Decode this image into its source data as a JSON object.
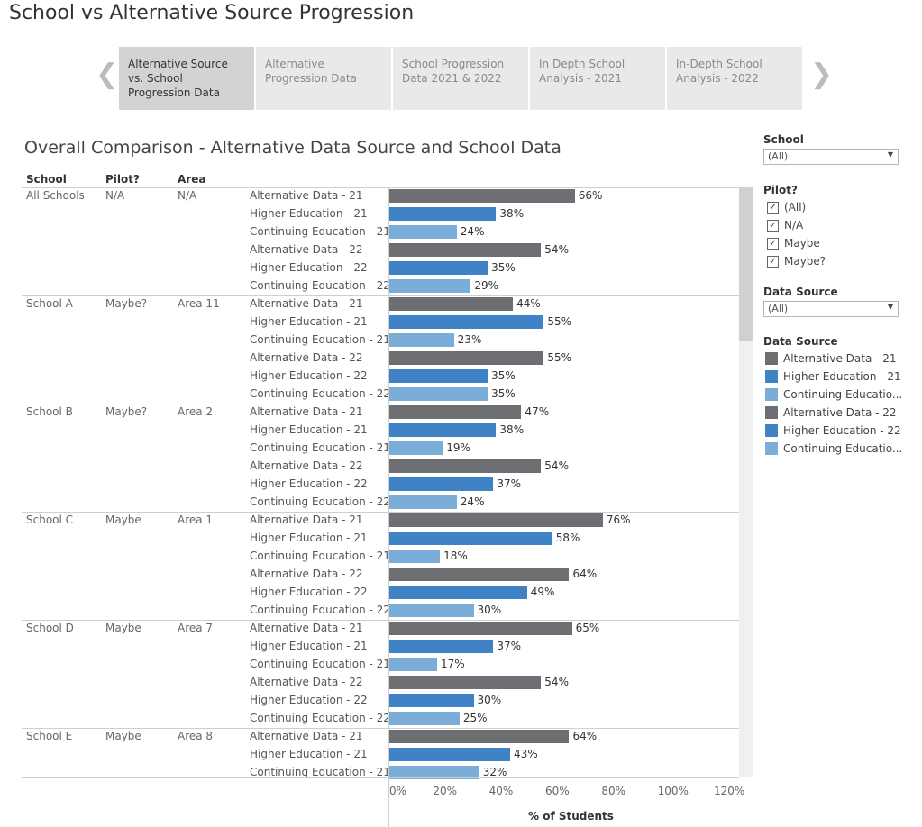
{
  "page": {
    "title": "School vs Alternative Source Progression",
    "subtitle": "Overall Comparison - Alternative Data Source and School Data"
  },
  "tabs": [
    {
      "label": "Alternative Source vs. School Progression Data",
      "active": true
    },
    {
      "label": "Alternative Progression Data",
      "active": false
    },
    {
      "label": "School Progression Data 2021 & 2022",
      "active": false
    },
    {
      "label": "In Depth School Analysis - 2021",
      "active": false
    },
    {
      "label": "In-Depth School Analysis - 2022",
      "active": false
    }
  ],
  "icons": {
    "prev": "chevron-left-icon",
    "next": "chevron-right-icon",
    "checkbox": "checkmark-icon",
    "dropdown": "caret-down-icon"
  },
  "table_headers": {
    "school": "School",
    "pilot": "Pilot?",
    "area": "Area"
  },
  "colors": {
    "alternative": "#6e6f72",
    "higher": "#3f82c5",
    "continuing": "#7aaed9"
  },
  "chart_data": {
    "type": "bar",
    "orientation": "horizontal",
    "xlabel": "% of Students",
    "xlim": [
      0,
      120
    ],
    "x_ticks": [
      "0%",
      "20%",
      "40%",
      "60%",
      "80%",
      "100%",
      "120%"
    ],
    "categories": [
      "Alternative Data - 21",
      "Higher Education - 21",
      "Continuing Education - 21",
      "Alternative Data - 22",
      "Higher Education - 22",
      "Continuing Education - 22"
    ],
    "groups": [
      {
        "school": "All Schools",
        "pilot": "N/A",
        "area": "N/A",
        "values": [
          66,
          38,
          24,
          54,
          35,
          29
        ]
      },
      {
        "school": "School A",
        "pilot": "Maybe?",
        "area": "Area 11",
        "values": [
          44,
          55,
          23,
          55,
          35,
          35
        ]
      },
      {
        "school": "School B",
        "pilot": "Maybe?",
        "area": "Area 2",
        "values": [
          47,
          38,
          19,
          54,
          37,
          24
        ]
      },
      {
        "school": "School C",
        "pilot": "Maybe",
        "area": "Area 1",
        "values": [
          76,
          58,
          18,
          64,
          49,
          30
        ]
      },
      {
        "school": "School D",
        "pilot": "Maybe",
        "area": "Area 7",
        "values": [
          65,
          37,
          17,
          54,
          30,
          25
        ]
      },
      {
        "school": "School E",
        "pilot": "Maybe",
        "area": "Area 8",
        "values": [
          64,
          43,
          32
        ]
      }
    ]
  },
  "filters": {
    "school": {
      "title": "School",
      "value": "(All)"
    },
    "pilot": {
      "title": "Pilot?",
      "options": [
        {
          "label": "(All)",
          "checked": true
        },
        {
          "label": "N/A",
          "checked": true
        },
        {
          "label": "Maybe",
          "checked": true
        },
        {
          "label": "Maybe?",
          "checked": true
        }
      ]
    },
    "data_source": {
      "title": "Data Source",
      "value": "(All)"
    },
    "legend": {
      "title": "Data Source",
      "items": [
        {
          "label": "Alternative Data - 21",
          "color": "#6e6f72"
        },
        {
          "label": "Higher Education - 21",
          "color": "#3f82c5"
        },
        {
          "label": "Continuing Educatio...",
          "color": "#7aaed9"
        },
        {
          "label": "Alternative Data - 22",
          "color": "#6e6f72"
        },
        {
          "label": "Higher Education - 22",
          "color": "#3f82c5"
        },
        {
          "label": "Continuing Educatio...",
          "color": "#7aaed9"
        }
      ]
    }
  }
}
